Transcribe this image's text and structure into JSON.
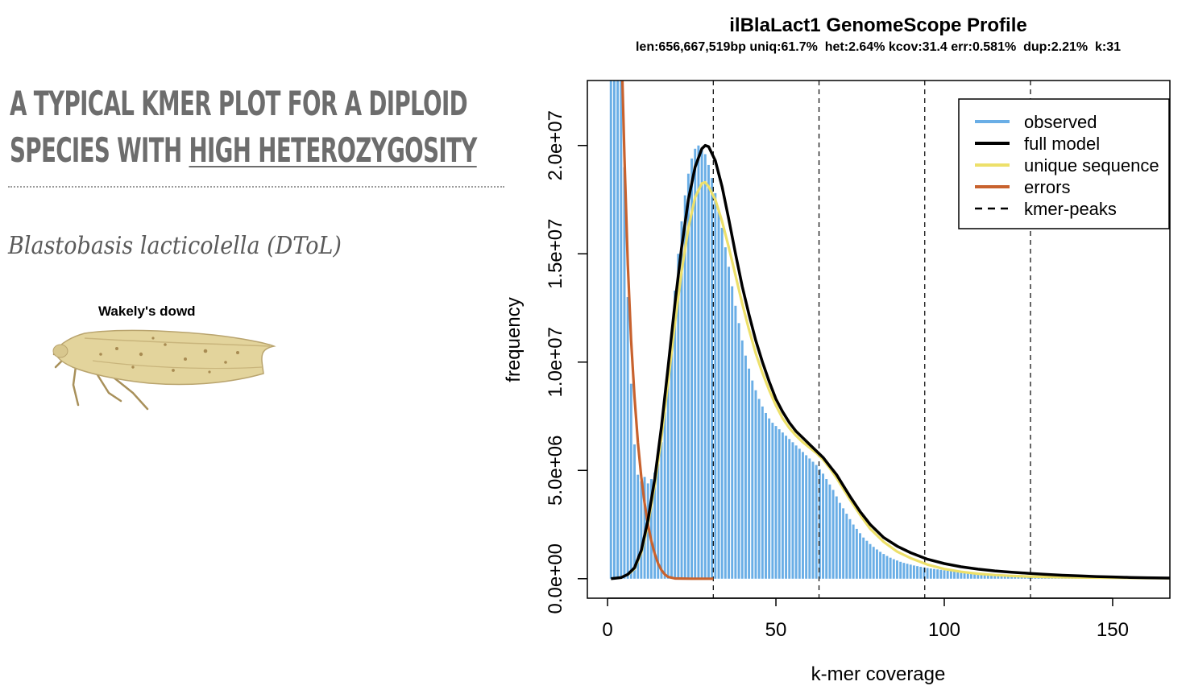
{
  "slide": {
    "title_line1": "A TYPICAL KMER PLOT FOR A DIPLOID",
    "title_line2_prefix": "SPECIES WITH ",
    "title_line2_underlined": "HIGH HETEROZYGOSITY",
    "species": "Blastobasis lacticolella (DToL)",
    "moth_caption": "Wakely's dowd"
  },
  "colors": {
    "observed": "#6aaee6",
    "full_model": "#000000",
    "unique_sequence": "#ede06a",
    "errors": "#c8622e",
    "kmer_peaks": "#000000",
    "title_text": "#6d6d6d"
  },
  "chart_data": {
    "type": "bar",
    "title": "ilBlaLact1 GenomeScope Profile",
    "subtitle": "len:656,667,519bp uniq:61.7%  het:2.64% kcov:31.4 err:0.581%  dup:2.21%  k:31",
    "xlabel": "k-mer coverage",
    "ylabel": "frequency",
    "xlim": [
      -6,
      167
    ],
    "ylim": [
      -900000,
      23000000
    ],
    "x_ticks": [
      0,
      50,
      100,
      150
    ],
    "x_tick_labels": [
      "0",
      "50",
      "100",
      "150"
    ],
    "y_ticks": [
      0,
      5000000,
      10000000,
      15000000,
      20000000
    ],
    "y_tick_labels": [
      "0.0e+00",
      "5.0e+06",
      "1.0e+07",
      "1.5e+07",
      "2.0e+07"
    ],
    "legend_position": "top-right",
    "legend": [
      {
        "label": "observed",
        "style": "line",
        "color": "#6aaee6"
      },
      {
        "label": "full model",
        "style": "line",
        "color": "#000000"
      },
      {
        "label": "unique sequence",
        "style": "line",
        "color": "#ede06a"
      },
      {
        "label": "errors",
        "style": "line",
        "color": "#c8622e"
      },
      {
        "label": "kmer-peaks",
        "style": "dashed",
        "color": "#000000"
      }
    ],
    "kmer_peaks": [
      31.4,
      62.8,
      94.2,
      125.6
    ],
    "observed": {
      "x": [
        1,
        2,
        3,
        4,
        5,
        6,
        7,
        8,
        9,
        10,
        11,
        12,
        13,
        14,
        15,
        16,
        17,
        18,
        19,
        20,
        21,
        22,
        23,
        24,
        25,
        26,
        27,
        28,
        29,
        30,
        31,
        32,
        33,
        34,
        35,
        36,
        37,
        38,
        39,
        40,
        41,
        42,
        43,
        44,
        45,
        46,
        47,
        48,
        49,
        50,
        51,
        52,
        53,
        54,
        55,
        56,
        57,
        58,
        59,
        60,
        61,
        62,
        63,
        64,
        65,
        66,
        67,
        68,
        69,
        70,
        71,
        72,
        73,
        74,
        75,
        76,
        77,
        78,
        79,
        80,
        81,
        82,
        83,
        84,
        85,
        86,
        87,
        88,
        89,
        90,
        91,
        92,
        93,
        94,
        95,
        96,
        97,
        98,
        99,
        100,
        101,
        102,
        103,
        104,
        105,
        106,
        107,
        108,
        109,
        110,
        111,
        112,
        113,
        114,
        115,
        116,
        117,
        118,
        119,
        120,
        121,
        122,
        123,
        124,
        125,
        126,
        127,
        128,
        129,
        130,
        131,
        132,
        133,
        134,
        135,
        136,
        137,
        138,
        139,
        140,
        141,
        142,
        143,
        144,
        145,
        146,
        147,
        148,
        149,
        150,
        151,
        152,
        153,
        154,
        155,
        156,
        157,
        158,
        159,
        160,
        161,
        162,
        163,
        164,
        165,
        166
      ],
      "y": [
        23000000,
        23000000,
        23000000,
        23000000,
        19000000,
        13000000,
        9000000,
        6200000,
        4800000,
        4500000,
        4700000,
        4400000,
        4600000,
        4900000,
        5300000,
        6300000,
        7700000,
        9400000,
        11300000,
        13300000,
        15000000,
        16500000,
        17700000,
        18700000,
        19400000,
        19850000,
        20000000,
        19900000,
        19600000,
        19100000,
        18500000,
        17800000,
        17000000,
        16200000,
        15300000,
        14400000,
        13500000,
        12600000,
        11800000,
        11000000,
        10300000,
        9700000,
        9150000,
        8700000,
        8300000,
        7950000,
        7650000,
        7400000,
        7200000,
        7050000,
        6900000,
        6750000,
        6600000,
        6450000,
        6300000,
        6150000,
        6000000,
        5850000,
        5700000,
        5550000,
        5400000,
        5250000,
        5050000,
        4850000,
        4600000,
        4350000,
        4100000,
        3800000,
        3500000,
        3250000,
        3000000,
        2750000,
        2500000,
        2300000,
        2100000,
        1900000,
        1750000,
        1600000,
        1470000,
        1350000,
        1240000,
        1140000,
        1050000,
        970000,
        900000,
        840000,
        780000,
        730000,
        690000,
        650000,
        610000,
        580000,
        550000,
        520000,
        495000,
        470000,
        450000,
        430000,
        410000,
        390000,
        370000,
        355000,
        340000,
        325000,
        312000,
        300000,
        288000,
        277000,
        266000,
        256000,
        246000,
        237000,
        228000,
        220000,
        212000,
        205000,
        198000,
        191000,
        185000,
        179000,
        173000,
        167000,
        162000,
        157000,
        152000,
        147000,
        142000,
        138000,
        134000,
        130000,
        126000,
        122000,
        118000,
        115000,
        112000,
        109000,
        106000,
        103000,
        100000,
        97000,
        94000,
        91000,
        88000,
        86000,
        84000,
        82000,
        80000,
        78000,
        76000,
        74000,
        72000,
        70000,
        68000,
        66000,
        64000,
        62000,
        60000,
        58000,
        56000,
        54000,
        52000,
        50000,
        48000,
        46000,
        44000,
        42000
      ]
    },
    "series": [
      {
        "name": "full model",
        "color": "#000000",
        "x": [
          1,
          4,
          6,
          8,
          10,
          12,
          14,
          16,
          18,
          20,
          22,
          24,
          26,
          28,
          29,
          30,
          32,
          34,
          36,
          38,
          40,
          42,
          44,
          46,
          48,
          50,
          52,
          54,
          56,
          58,
          60,
          62,
          64,
          66,
          68,
          70,
          72,
          75,
          78,
          82,
          86,
          90,
          95,
          100,
          105,
          110,
          115,
          120,
          125,
          130,
          135,
          140,
          145,
          150,
          155,
          160,
          167
        ],
        "y": [
          0,
          50000,
          200000,
          500000,
          1300000,
          2700000,
          4600000,
          7000000,
          9800000,
          12700000,
          15300000,
          17500000,
          19000000,
          19850000,
          20000000,
          19950000,
          19300000,
          18100000,
          16600000,
          15000000,
          13500000,
          12200000,
          11000000,
          10000000,
          9100000,
          8300000,
          7700000,
          7200000,
          6800000,
          6500000,
          6200000,
          5900000,
          5600000,
          5200000,
          4800000,
          4300000,
          3800000,
          3100000,
          2500000,
          1900000,
          1500000,
          1200000,
          900000,
          700000,
          550000,
          440000,
          360000,
          300000,
          250000,
          200000,
          160000,
          130000,
          100000,
          80000,
          60000,
          45000,
          30000
        ]
      },
      {
        "name": "unique sequence",
        "color": "#ede06a",
        "x": [
          6,
          8,
          10,
          12,
          14,
          16,
          18,
          20,
          22,
          24,
          26,
          28,
          29,
          30,
          32,
          34,
          36,
          38,
          40,
          42,
          44,
          46,
          48,
          50,
          52,
          54,
          56,
          58,
          60,
          62,
          64,
          66,
          68,
          70,
          72,
          75,
          78,
          82,
          86,
          90,
          95,
          100,
          105,
          110,
          115,
          120,
          125,
          130,
          140,
          150,
          160,
          167
        ],
        "y": [
          180000,
          460000,
          1200000,
          2500000,
          4300000,
          6500000,
          9100000,
          11800000,
          14200000,
          16200000,
          17600000,
          18250000,
          18300000,
          18100000,
          17500000,
          16500000,
          15300000,
          14000000,
          12700000,
          11500000,
          10400000,
          9500000,
          8700000,
          8000000,
          7400000,
          6950000,
          6600000,
          6300000,
          6050000,
          5800000,
          5500000,
          5100000,
          4650000,
          4150000,
          3650000,
          2950000,
          2300000,
          1700000,
          1250000,
          950000,
          650000,
          450000,
          320000,
          230000,
          170000,
          130000,
          100000,
          80000,
          55000,
          40000,
          30000,
          20000
        ]
      },
      {
        "name": "errors",
        "color": "#c8622e",
        "x": [
          4.4,
          5,
          6,
          7,
          8,
          9,
          10,
          11,
          12,
          13,
          14,
          15,
          16,
          17,
          18,
          20,
          25,
          31.4
        ],
        "y": [
          23000000,
          19500000,
          14500000,
          11000000,
          8400000,
          6300000,
          4700000,
          3500000,
          2500000,
          1750000,
          1150000,
          700000,
          400000,
          200000,
          80000,
          10000,
          0,
          0
        ]
      }
    ]
  }
}
